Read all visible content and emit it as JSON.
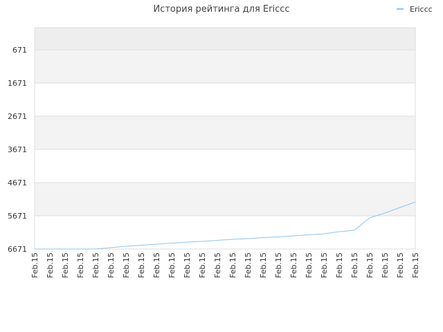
{
  "chart_data": {
    "type": "line",
    "title": "История рейтинга для Ericcc",
    "categories": [
      "Feb.15",
      "Feb.15",
      "Feb.15",
      "Feb.15",
      "Feb.15",
      "Feb.15",
      "Feb.15",
      "Feb.15",
      "Feb.15",
      "Feb.15",
      "Feb.15",
      "Feb.15",
      "Feb.15",
      "Feb.15",
      "Feb.15",
      "Feb.15",
      "Feb.15",
      "Feb.15",
      "Feb.15",
      "Feb.15",
      "Feb.15",
      "Feb.15",
      "Feb.15",
      "Feb.15",
      "Feb.15",
      "Feb.15"
    ],
    "series": [
      {
        "name": "Ericcc",
        "color": "#8ec4ef",
        "values": [
          6671,
          6671,
          6671,
          6671,
          6671,
          6629,
          6588,
          6556,
          6525,
          6494,
          6463,
          6442,
          6410,
          6379,
          6358,
          6327,
          6306,
          6275,
          6244,
          6213,
          6150,
          6108,
          5733,
          5588,
          5421,
          5254
        ]
      }
    ],
    "ylim": [
      4,
      6671
    ],
    "inverted": true,
    "yticks": [
      671,
      1671,
      2671,
      3671,
      4671,
      5671,
      6671
    ],
    "grid": true,
    "legend": "top-right"
  }
}
